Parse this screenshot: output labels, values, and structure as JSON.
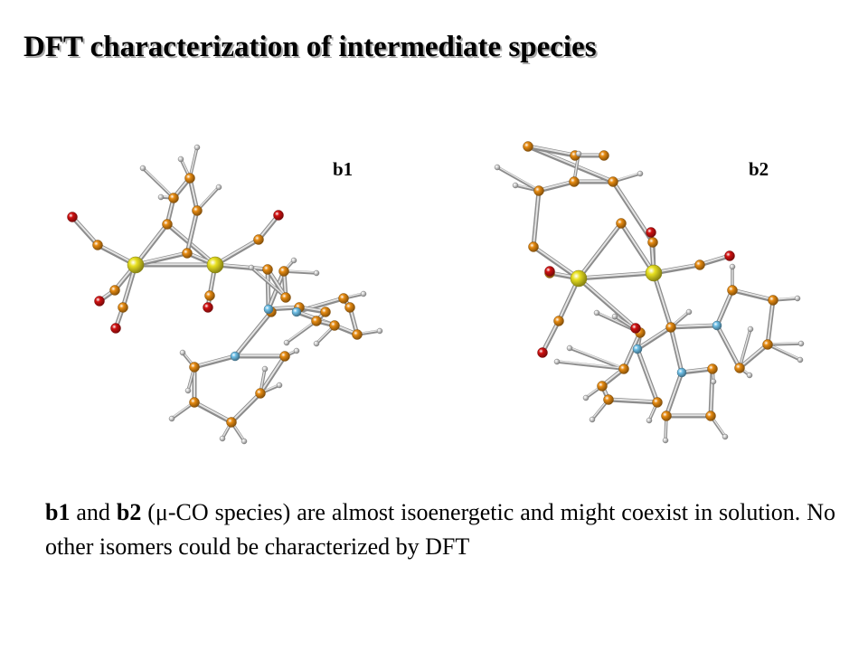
{
  "slide": {
    "title": "DFT characterization of intermediate species",
    "label_b1": "b1",
    "label_b2": "b2"
  },
  "caption": {
    "b1": "b1",
    "and": " and ",
    "b2": "b2",
    "rest": " (μ-CO species) are almost isoenergetic and might coexist in solution. No other isomers could be characterized by DFT"
  },
  "colors": {
    "metal": "#e8e020",
    "carbon": "#e68a10",
    "oxygen": "#d01010",
    "nitrogen": "#6ec0e8",
    "hydrogen": "#dcdcdc",
    "bond": "#b8b8b8",
    "title_shadow": "#a9a9a9"
  }
}
